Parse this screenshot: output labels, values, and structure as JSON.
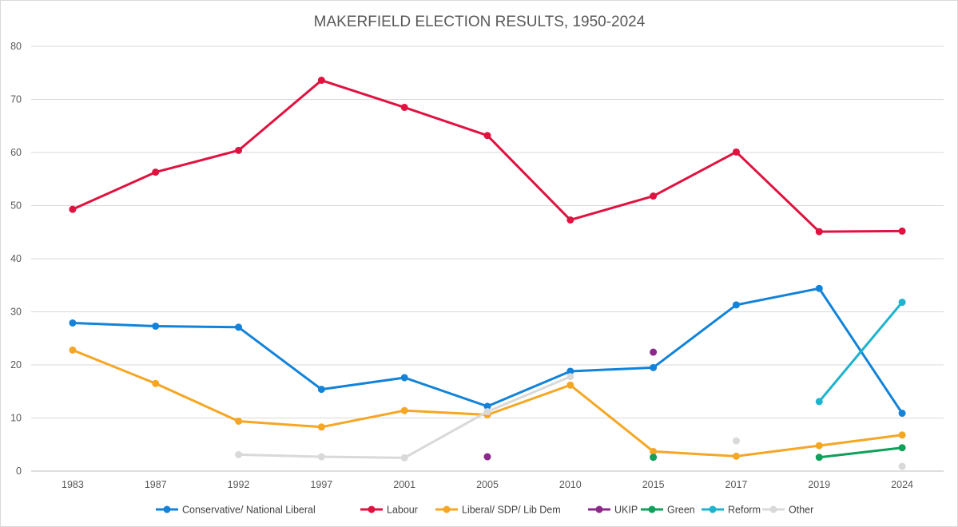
{
  "chart_data": {
    "type": "line",
    "title": "MAKERFIELD ELECTION RESULTS, 1950-2024",
    "xlabel": "",
    "ylabel": "",
    "categories": [
      "1983",
      "1987",
      "1992",
      "1997",
      "2001",
      "2005",
      "2010",
      "2015",
      "2017",
      "2019",
      "2024"
    ],
    "ylim": [
      0,
      80
    ],
    "yticks": [
      "0",
      "10",
      "20",
      "30",
      "40",
      "50",
      "60",
      "70",
      "80"
    ],
    "grid": true,
    "legend_position": "bottom",
    "series": [
      {
        "name": "Conservative/ National Liberal",
        "color": "#1283d8",
        "values": [
          27.9,
          27.3,
          27.1,
          15.4,
          17.6,
          12.2,
          18.8,
          19.5,
          31.3,
          34.4,
          10.9
        ]
      },
      {
        "name": "Labour",
        "color": "#e0123f",
        "values": [
          49.3,
          56.3,
          60.4,
          73.6,
          68.5,
          63.2,
          47.3,
          51.8,
          60.1,
          45.1,
          45.2
        ]
      },
      {
        "name": "Liberal/ SDP/ Lib  Dem",
        "color": "#f5a623",
        "values": [
          22.8,
          16.5,
          9.4,
          8.3,
          11.4,
          10.6,
          16.2,
          3.7,
          2.8,
          4.8,
          6.8
        ]
      },
      {
        "name": "UKIP",
        "color": "#8b2a8b",
        "values": [
          null,
          null,
          null,
          null,
          null,
          2.7,
          null,
          22.4,
          null,
          null,
          null
        ]
      },
      {
        "name": "Green",
        "color": "#0fa05a",
        "values": [
          null,
          null,
          null,
          null,
          null,
          null,
          null,
          2.6,
          null,
          2.6,
          4.4
        ]
      },
      {
        "name": "Reform",
        "color": "#1db4cd",
        "values": [
          null,
          null,
          null,
          null,
          null,
          null,
          null,
          null,
          null,
          13.1,
          31.8
        ]
      },
      {
        "name": "Other",
        "color": "#d9d9d9",
        "values": [
          null,
          null,
          3.1,
          2.7,
          2.5,
          11.2,
          17.8,
          null,
          5.7,
          null,
          0.9
        ]
      }
    ]
  }
}
